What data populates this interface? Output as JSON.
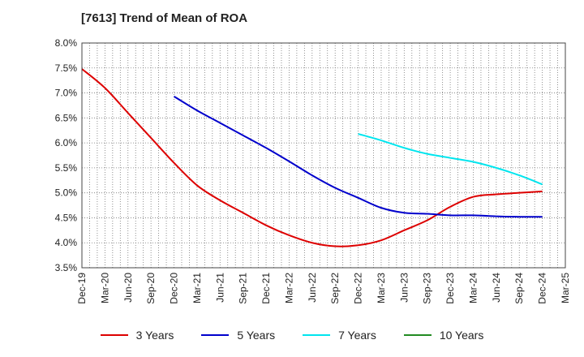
{
  "title": "[7613]  Trend of Mean of ROA",
  "chart_data": {
    "type": "line",
    "title": "[7613]  Trend of Mean of ROA",
    "xlabel": "",
    "ylabel": "",
    "ylim": [
      3.5,
      8.0
    ],
    "yticks": [
      "3.5%",
      "4.0%",
      "4.5%",
      "5.0%",
      "5.5%",
      "6.0%",
      "6.5%",
      "7.0%",
      "7.5%",
      "8.0%"
    ],
    "ytick_values": [
      3.5,
      4.0,
      4.5,
      5.0,
      5.5,
      6.0,
      6.5,
      7.0,
      7.5,
      8.0
    ],
    "categories": [
      "Dec-19",
      "Mar-20",
      "Jun-20",
      "Sep-20",
      "Dec-20",
      "Mar-21",
      "Jun-21",
      "Sep-21",
      "Dec-21",
      "Mar-22",
      "Jun-22",
      "Sep-22",
      "Dec-22",
      "Mar-23",
      "Jun-23",
      "Sep-23",
      "Dec-23",
      "Mar-24",
      "Jun-24",
      "Sep-24",
      "Dec-24",
      "Mar-25"
    ],
    "grid": true,
    "legend_position": "bottom",
    "series": [
      {
        "name": "3 Years",
        "color": "#dd0000",
        "values": [
          7.48,
          7.1,
          6.6,
          6.1,
          5.6,
          5.15,
          4.85,
          4.6,
          4.35,
          4.15,
          4.0,
          3.93,
          3.95,
          4.05,
          4.25,
          4.45,
          4.72,
          4.92,
          4.97,
          5.0,
          5.03,
          null
        ]
      },
      {
        "name": "5 Years",
        "color": "#0000cc",
        "values": [
          null,
          null,
          null,
          null,
          6.93,
          6.65,
          6.4,
          6.15,
          5.9,
          5.63,
          5.35,
          5.1,
          4.9,
          4.7,
          4.6,
          4.58,
          4.55,
          4.55,
          4.53,
          4.52,
          4.52,
          null
        ]
      },
      {
        "name": "7 Years",
        "color": "#00e5ee",
        "values": [
          null,
          null,
          null,
          null,
          null,
          null,
          null,
          null,
          null,
          null,
          null,
          null,
          6.18,
          6.05,
          5.9,
          5.78,
          5.7,
          5.62,
          5.5,
          5.35,
          5.17,
          null
        ]
      },
      {
        "name": "10 Years",
        "color": "#228b22",
        "values": [
          null,
          null,
          null,
          null,
          null,
          null,
          null,
          null,
          null,
          null,
          null,
          null,
          null,
          null,
          null,
          null,
          null,
          null,
          null,
          null,
          null,
          null
        ]
      }
    ]
  }
}
